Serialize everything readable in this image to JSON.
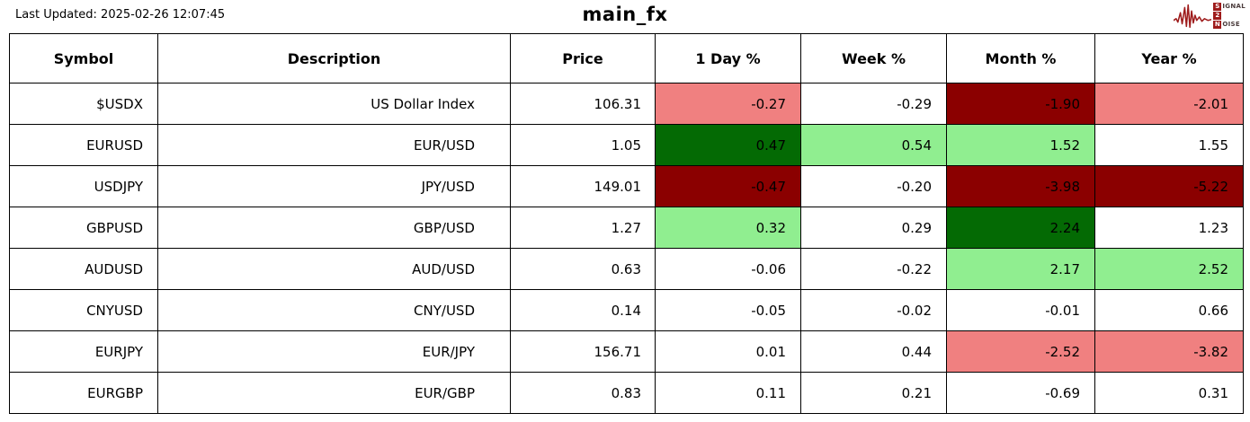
{
  "meta": {
    "last_updated": "Last Updated: 2025-02-26 12:07:45",
    "title": "main_fx"
  },
  "logo": {
    "word1_initial": "S",
    "word1_rest": "IGNAL",
    "middle": "2",
    "word2_initial": "N",
    "word2_rest": "OISE",
    "wave_color": "#9e1b1b"
  },
  "colors": {
    "pos_dark": "#046a04",
    "pos_light": "#90ee90",
    "neg_dark": "#8b0000",
    "neg_light": "#f08080",
    "none": "#ffffff"
  },
  "table": {
    "columns": [
      "Symbol",
      "Description",
      "Price",
      "1 Day %",
      "Week %",
      "Month %",
      "Year %"
    ],
    "rows": [
      {
        "symbol": "$USDX",
        "description": "US Dollar Index",
        "price": "106.31",
        "pct": [
          {
            "v": "-0.27",
            "bg": "neg_light"
          },
          {
            "v": "-0.29",
            "bg": "none"
          },
          {
            "v": "-1.90",
            "bg": "neg_dark"
          },
          {
            "v": "-2.01",
            "bg": "neg_light"
          }
        ]
      },
      {
        "symbol": "EURUSD",
        "description": "EUR/USD",
        "price": "1.05",
        "pct": [
          {
            "v": "0.47",
            "bg": "pos_dark"
          },
          {
            "v": "0.54",
            "bg": "pos_light"
          },
          {
            "v": "1.52",
            "bg": "pos_light"
          },
          {
            "v": "1.55",
            "bg": "none"
          }
        ]
      },
      {
        "symbol": "USDJPY",
        "description": "JPY/USD",
        "price": "149.01",
        "pct": [
          {
            "v": "-0.47",
            "bg": "neg_dark"
          },
          {
            "v": "-0.20",
            "bg": "none"
          },
          {
            "v": "-3.98",
            "bg": "neg_dark"
          },
          {
            "v": "-5.22",
            "bg": "neg_dark"
          }
        ]
      },
      {
        "symbol": "GBPUSD",
        "description": "GBP/USD",
        "price": "1.27",
        "pct": [
          {
            "v": "0.32",
            "bg": "pos_light"
          },
          {
            "v": "0.29",
            "bg": "none"
          },
          {
            "v": "2.24",
            "bg": "pos_dark"
          },
          {
            "v": "1.23",
            "bg": "none"
          }
        ]
      },
      {
        "symbol": "AUDUSD",
        "description": "AUD/USD",
        "price": "0.63",
        "pct": [
          {
            "v": "-0.06",
            "bg": "none"
          },
          {
            "v": "-0.22",
            "bg": "none"
          },
          {
            "v": "2.17",
            "bg": "pos_light"
          },
          {
            "v": "2.52",
            "bg": "pos_light"
          }
        ]
      },
      {
        "symbol": "CNYUSD",
        "description": "CNY/USD",
        "price": "0.14",
        "pct": [
          {
            "v": "-0.05",
            "bg": "none"
          },
          {
            "v": "-0.02",
            "bg": "none"
          },
          {
            "v": "-0.01",
            "bg": "none"
          },
          {
            "v": "0.66",
            "bg": "none"
          }
        ]
      },
      {
        "symbol": "EURJPY",
        "description": "EUR/JPY",
        "price": "156.71",
        "pct": [
          {
            "v": "0.01",
            "bg": "none"
          },
          {
            "v": "0.44",
            "bg": "none"
          },
          {
            "v": "-2.52",
            "bg": "neg_light"
          },
          {
            "v": "-3.82",
            "bg": "neg_light"
          }
        ]
      },
      {
        "symbol": "EURGBP",
        "description": "EUR/GBP",
        "price": "0.83",
        "pct": [
          {
            "v": "0.11",
            "bg": "none"
          },
          {
            "v": "0.21",
            "bg": "none"
          },
          {
            "v": "-0.69",
            "bg": "none"
          },
          {
            "v": "0.31",
            "bg": "none"
          }
        ]
      }
    ]
  },
  "chart_data": {
    "type": "table",
    "title": "main_fx",
    "columns": [
      "Symbol",
      "Description",
      "Price",
      "1 Day %",
      "Week %",
      "Month %",
      "Year %"
    ],
    "rows": [
      [
        "$USDX",
        "US Dollar Index",
        106.31,
        -0.27,
        -0.29,
        -1.9,
        -2.01
      ],
      [
        "EURUSD",
        "EUR/USD",
        1.05,
        0.47,
        0.54,
        1.52,
        1.55
      ],
      [
        "USDJPY",
        "JPY/USD",
        149.01,
        -0.47,
        -0.2,
        -3.98,
        -5.22
      ],
      [
        "GBPUSD",
        "GBP/USD",
        1.27,
        0.32,
        0.29,
        2.24,
        1.23
      ],
      [
        "AUDUSD",
        "AUD/USD",
        0.63,
        -0.06,
        -0.22,
        2.17,
        2.52
      ],
      [
        "CNYUSD",
        "CNY/USD",
        0.14,
        -0.05,
        -0.02,
        -0.01,
        0.66
      ],
      [
        "EURJPY",
        "EUR/JPY",
        156.71,
        0.01,
        0.44,
        -2.52,
        -3.82
      ],
      [
        "EURGBP",
        "EUR/GBP",
        0.83,
        0.11,
        0.21,
        -0.69,
        0.31
      ]
    ],
    "heatmap_legend": {
      "strong_positive": "#046a04",
      "light_positive": "#90ee90",
      "strong_negative": "#8b0000",
      "light_negative": "#f08080",
      "neutral": "#ffffff"
    }
  }
}
